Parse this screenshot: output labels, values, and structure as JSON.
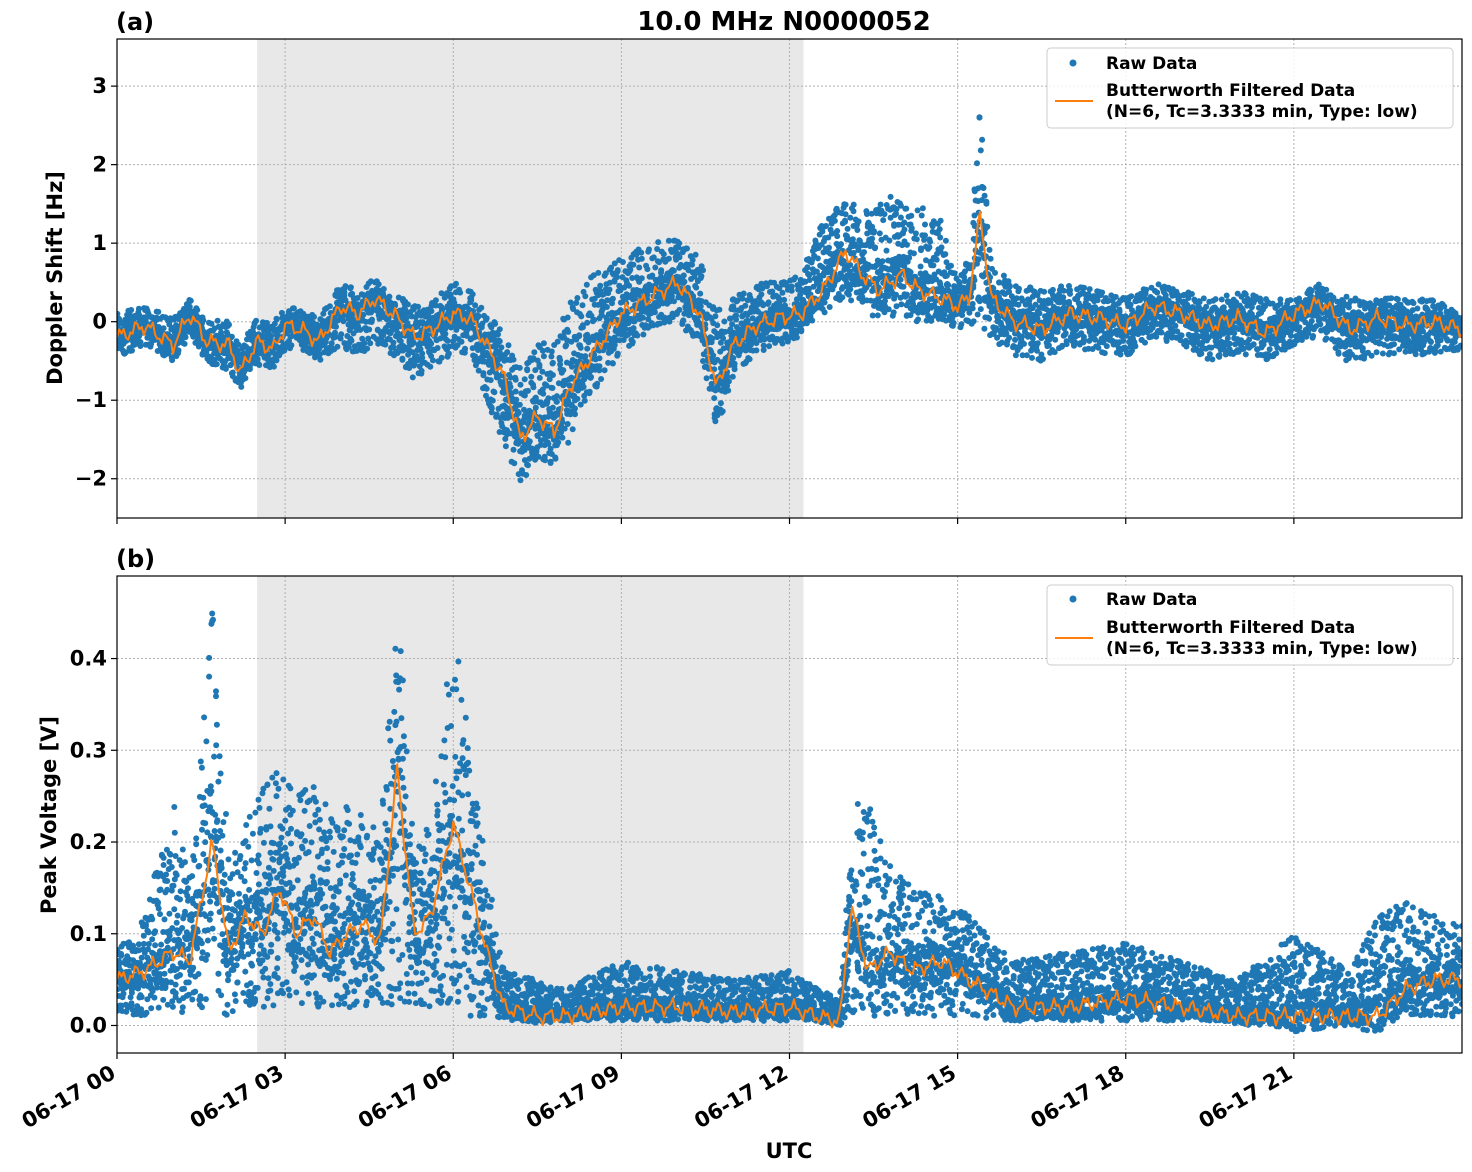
{
  "figure": {
    "title": "10.0 MHz N0000052",
    "xlabel": "UTC",
    "xticks": [
      "06-17 00",
      "06-17 03",
      "06-17 06",
      "06-17 09",
      "06-17 12",
      "06-17 15",
      "06-17 18",
      "06-17 21"
    ],
    "colors": {
      "raw": "#1f77b4",
      "filtered": "#ff7f0e",
      "shade": "#e8e8e8",
      "grid": "#b0b0b0"
    }
  },
  "chart_data": [
    {
      "type": "scatter",
      "panel_label": "(a)",
      "ylabel": "Doppler Shift [Hz]",
      "xlim_hours": [
        0,
        24
      ],
      "ylim": [
        -2.5,
        3.6
      ],
      "yticks": [
        -2,
        -1,
        0,
        1,
        2,
        3
      ],
      "ytick_labels": [
        "−2",
        "−1",
        "0",
        "1",
        "2",
        "3"
      ],
      "grid": true,
      "legend_position": "top-right",
      "legend": [
        "Raw Data",
        "Butterworth Filtered Data",
        "(N=6, Tc=3.3333 min, Type: low)"
      ],
      "shaded_region_hours": [
        2.5,
        12.25
      ],
      "series": [
        {
          "name": "Butterworth Filtered Data",
          "x_hours": [
            0,
            0.5,
            1,
            1.3,
            1.6,
            2,
            2.2,
            2.5,
            2.8,
            3,
            3.3,
            3.6,
            4,
            4.3,
            4.6,
            5,
            5.3,
            5.6,
            6,
            6.3,
            6.6,
            6.9,
            7.2,
            7.5,
            7.8,
            8.1,
            8.5,
            9,
            9.5,
            10,
            10.4,
            10.7,
            11,
            11.4,
            11.8,
            12.2,
            12.6,
            13,
            13.3,
            13.6,
            14,
            14.3,
            14.7,
            15,
            15.2,
            15.4,
            15.6,
            16,
            16.5,
            17,
            17.5,
            18,
            18.5,
            19,
            19.5,
            20,
            20.5,
            21,
            21.5,
            22,
            22.5,
            23,
            23.5,
            24
          ],
          "y": [
            -0.2,
            -0.05,
            -0.3,
            0.1,
            -0.25,
            -0.3,
            -0.65,
            -0.25,
            -0.35,
            -0.05,
            -0.1,
            -0.25,
            0.2,
            0.1,
            0.3,
            0.05,
            -0.2,
            -0.1,
            0.1,
            0.05,
            -0.3,
            -0.7,
            -1.5,
            -1.2,
            -1.4,
            -0.8,
            -0.4,
            0.1,
            0.3,
            0.5,
            0.1,
            -0.85,
            -0.3,
            -0.05,
            0.05,
            0.1,
            0.4,
            0.9,
            0.6,
            0.4,
            0.6,
            0.4,
            0.3,
            0.2,
            0.3,
            1.35,
            0.3,
            0,
            -0.1,
            0.1,
            0.05,
            -0.05,
            0.2,
            0.1,
            -0.05,
            0.05,
            -0.15,
            0.1,
            0.25,
            -0.1,
            0.05,
            -0.05,
            0,
            -0.1
          ]
        },
        {
          "name": "Raw Data",
          "envelope_hours": [
            0,
            0.5,
            1,
            1.3,
            1.6,
            2,
            2.2,
            2.5,
            2.8,
            3,
            3.3,
            3.6,
            4,
            4.3,
            4.6,
            5,
            5.3,
            5.6,
            6,
            6.3,
            6.6,
            6.9,
            7.2,
            7.5,
            7.8,
            8.1,
            8.5,
            9,
            9.5,
            10,
            10.4,
            10.7,
            11,
            11.4,
            11.8,
            12.2,
            12.6,
            13,
            13.3,
            13.6,
            14,
            14.3,
            14.7,
            15,
            15.2,
            15.4,
            15.6,
            16,
            16.5,
            17,
            17.5,
            18,
            18.5,
            19,
            19.5,
            20,
            20.5,
            21,
            21.5,
            22,
            22.5,
            23,
            23.5,
            24
          ],
          "upper": [
            0.1,
            0.2,
            0.05,
            0.3,
            0.05,
            0,
            -0.3,
            0.1,
            0,
            0.2,
            0.15,
            0.05,
            0.5,
            0.4,
            0.55,
            0.35,
            0.2,
            0.25,
            0.5,
            0.4,
            0.1,
            -0.1,
            -0.6,
            -0.3,
            -0.2,
            0.3,
            0.6,
            0.8,
            1,
            1.1,
            0.8,
            0.2,
            0.3,
            0.5,
            0.5,
            0.6,
            1.3,
            1.6,
            1.4,
            1.5,
            1.7,
            1.5,
            1.3,
            0.6,
            0.8,
            2.8,
            0.7,
            0.5,
            0.4,
            0.5,
            0.4,
            0.3,
            0.5,
            0.4,
            0.3,
            0.4,
            0.3,
            0.3,
            0.5,
            0.3,
            0.3,
            0.3,
            0.3,
            0.1
          ],
          "lower": [
            -0.45,
            -0.3,
            -0.5,
            -0.2,
            -0.5,
            -0.65,
            -0.85,
            -0.55,
            -0.6,
            -0.35,
            -0.35,
            -0.5,
            -0.3,
            -0.5,
            -0.25,
            -0.5,
            -0.8,
            -0.6,
            -0.4,
            -0.4,
            -1,
            -1.6,
            -2.1,
            -1.8,
            -1.9,
            -1.5,
            -0.9,
            -0.4,
            -0.1,
            0,
            -0.3,
            -1.4,
            -0.7,
            -0.4,
            -0.3,
            -0.2,
            0.1,
            0.3,
            0.1,
            0,
            0.05,
            0,
            0,
            -0.1,
            -0.1,
            -0.1,
            -0.2,
            -0.45,
            -0.5,
            -0.3,
            -0.4,
            -0.45,
            -0.2,
            -0.3,
            -0.5,
            -0.4,
            -0.5,
            -0.3,
            -0.2,
            -0.55,
            -0.4,
            -0.45,
            -0.4,
            -0.35
          ]
        }
      ]
    },
    {
      "type": "scatter",
      "panel_label": "(b)",
      "ylabel": "Peak Voltage [V]",
      "xlim_hours": [
        0,
        24
      ],
      "ylim": [
        -0.03,
        0.49
      ],
      "yticks": [
        0.0,
        0.1,
        0.2,
        0.3,
        0.4
      ],
      "ytick_labels": [
        "0.0",
        "0.1",
        "0.2",
        "0.3",
        "0.4"
      ],
      "grid": true,
      "legend_position": "top-right",
      "legend": [
        "Raw Data",
        "Butterworth Filtered Data",
        "(N=6, Tc=3.3333 min, Type: low)"
      ],
      "shaded_region_hours": [
        2.5,
        12.25
      ],
      "series": [
        {
          "name": "Butterworth Filtered Data",
          "x_hours": [
            0,
            0.5,
            1,
            1.3,
            1.7,
            2,
            2.3,
            2.6,
            2.9,
            3.2,
            3.5,
            3.8,
            4.1,
            4.4,
            4.7,
            5,
            5.3,
            5.6,
            6,
            6.3,
            6.6,
            6.9,
            7.5,
            8,
            9,
            10,
            11,
            12,
            12.5,
            12.9,
            13.1,
            13.4,
            13.8,
            14.2,
            14.7,
            15.2,
            16,
            17,
            18,
            19,
            20,
            21,
            22,
            22.5,
            23,
            23.5,
            24
          ],
          "y": [
            0.05,
            0.06,
            0.08,
            0.07,
            0.2,
            0.08,
            0.12,
            0.1,
            0.15,
            0.1,
            0.12,
            0.08,
            0.1,
            0.11,
            0.09,
            0.28,
            0.1,
            0.12,
            0.22,
            0.15,
            0.08,
            0.02,
            0.01,
            0.01,
            0.02,
            0.02,
            0.015,
            0.02,
            0.01,
            0.005,
            0.13,
            0.06,
            0.08,
            0.06,
            0.07,
            0.05,
            0.02,
            0.02,
            0.03,
            0.02,
            0.01,
            0.01,
            0.01,
            0.01,
            0.04,
            0.05,
            0.05
          ]
        },
        {
          "name": "Raw Data",
          "envelope_hours": [
            0,
            0.5,
            1,
            1.3,
            1.7,
            2,
            2.3,
            2.6,
            2.9,
            3.2,
            3.5,
            3.8,
            4.1,
            4.4,
            4.7,
            5,
            5.3,
            5.6,
            6,
            6.3,
            6.6,
            6.9,
            7.5,
            8,
            9,
            10,
            11,
            12,
            12.5,
            12.9,
            13.1,
            13.4,
            13.8,
            14.2,
            14.7,
            15.2,
            16,
            17,
            18,
            19,
            20,
            21,
            22,
            22.5,
            23,
            23.5,
            24
          ],
          "upper": [
            0.09,
            0.12,
            0.25,
            0.16,
            0.46,
            0.18,
            0.22,
            0.26,
            0.28,
            0.25,
            0.27,
            0.24,
            0.24,
            0.23,
            0.21,
            0.47,
            0.2,
            0.22,
            0.44,
            0.3,
            0.17,
            0.06,
            0.05,
            0.04,
            0.07,
            0.06,
            0.05,
            0.06,
            0.04,
            0.03,
            0.24,
            0.25,
            0.18,
            0.15,
            0.14,
            0.12,
            0.07,
            0.08,
            0.09,
            0.07,
            0.05,
            0.1,
            0.06,
            0.12,
            0.14,
            0.12,
            0.11
          ],
          "lower": [
            0.01,
            0.01,
            0.02,
            0.01,
            0.02,
            0.01,
            0.02,
            0.02,
            0.02,
            0.02,
            0.02,
            0.02,
            0.02,
            0.02,
            0.02,
            0.02,
            0.02,
            0.02,
            0.02,
            0.01,
            0.01,
            0.005,
            0.005,
            0.005,
            0.005,
            0.005,
            0.005,
            0.005,
            0.005,
            0,
            0.01,
            0.01,
            0.01,
            0.01,
            0.01,
            0.01,
            0.005,
            0.005,
            0.005,
            0.005,
            0.005,
            0.005,
            0.005,
            0.005,
            0.01,
            0.01,
            0.01
          ]
        }
      ]
    }
  ]
}
